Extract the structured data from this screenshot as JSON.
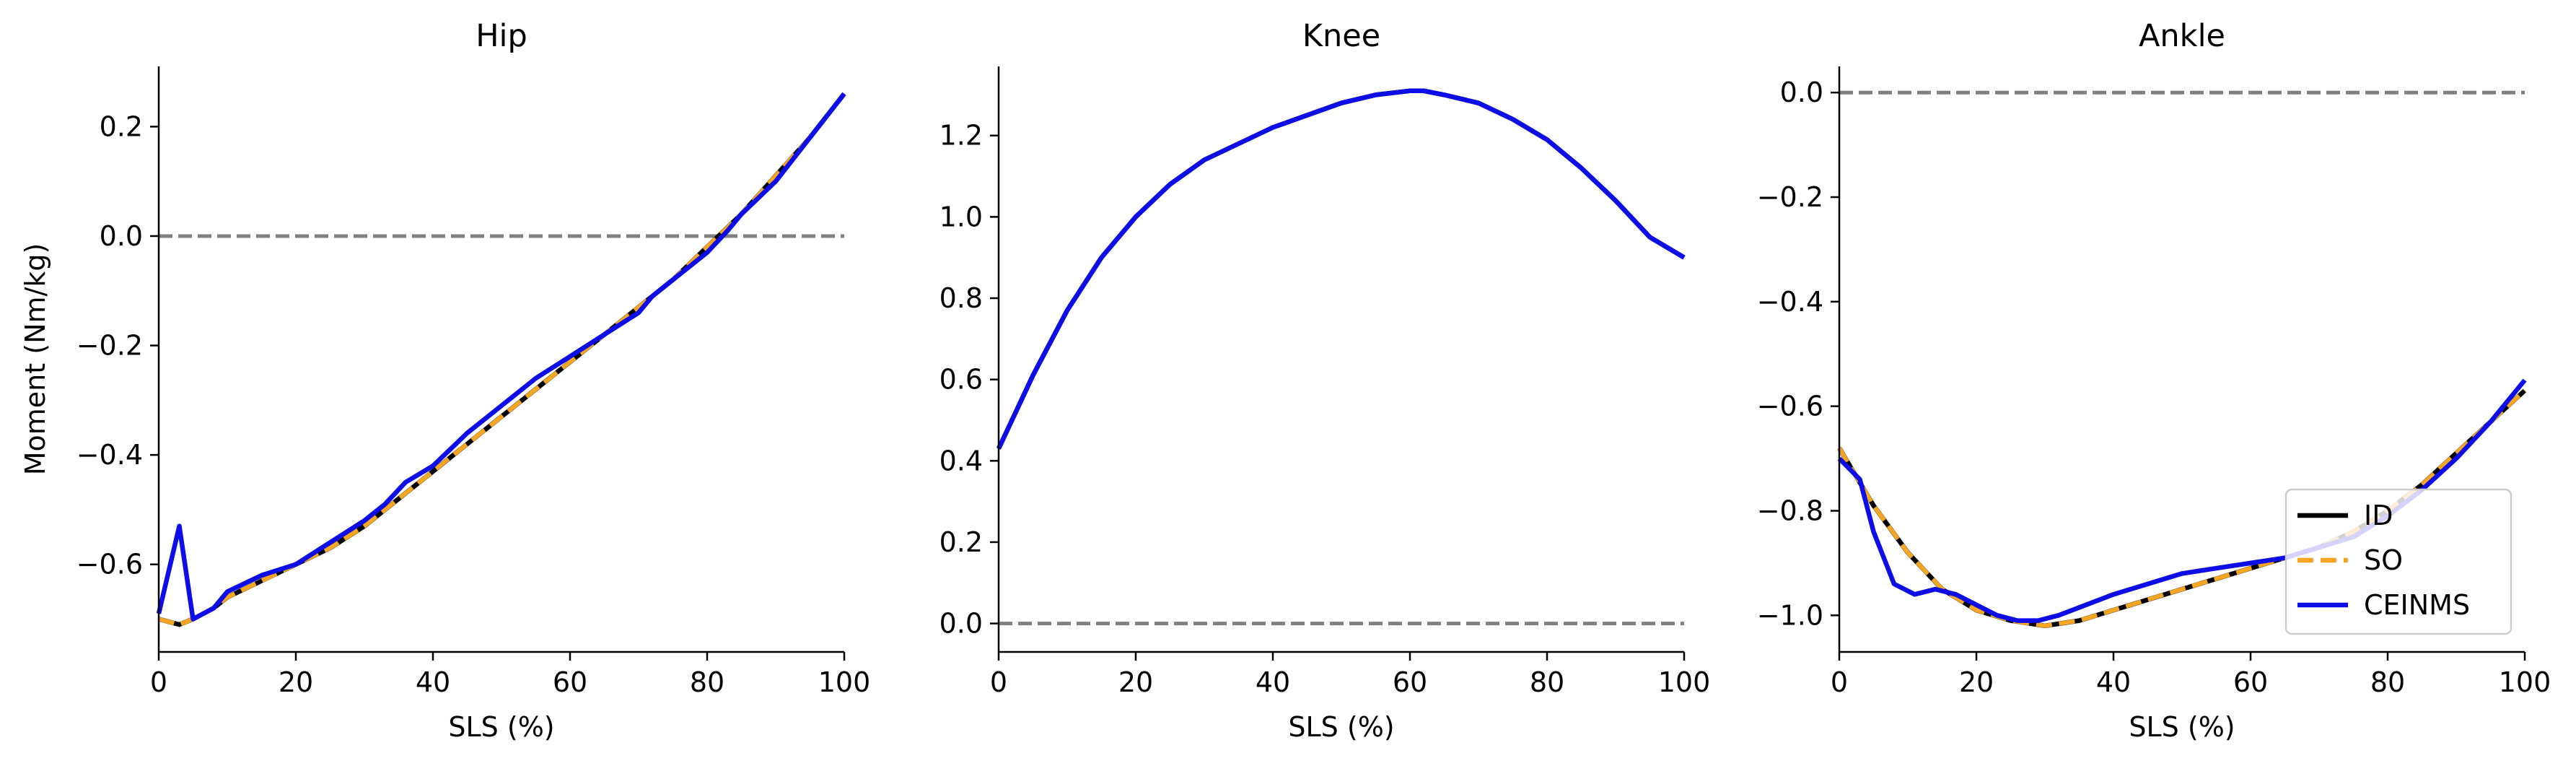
{
  "chart_data": [
    {
      "type": "line",
      "title": "Hip",
      "xlabel": "SLS (%)",
      "ylabel": "Moment (Nm/kg)",
      "xlim": [
        0,
        100
      ],
      "ylim": [
        -0.76,
        0.31
      ],
      "xticks": [
        0,
        20,
        40,
        60,
        80,
        100
      ],
      "xtick_labels": [
        "0",
        "20",
        "40",
        "60",
        "80",
        "100"
      ],
      "yticks": [
        -0.6,
        -0.4,
        -0.2,
        0.0,
        0.2
      ],
      "ytick_labels": [
        "−0.6",
        "−0.4",
        "−0.2",
        "0.0",
        "0.2"
      ],
      "zero_line": true,
      "grid": false,
      "series": [
        {
          "name": "ID",
          "color": "#000000",
          "style": "solid",
          "x": [
            0,
            3,
            5,
            8,
            10,
            15,
            20,
            25,
            30,
            35,
            40,
            45,
            50,
            55,
            60,
            65,
            70,
            75,
            80,
            85,
            90,
            95,
            100
          ],
          "y": [
            -0.7,
            -0.71,
            -0.7,
            -0.68,
            -0.66,
            -0.63,
            -0.6,
            -0.57,
            -0.53,
            -0.48,
            -0.43,
            -0.38,
            -0.33,
            -0.28,
            -0.23,
            -0.18,
            -0.13,
            -0.08,
            -0.02,
            0.04,
            0.11,
            0.18,
            0.26
          ]
        },
        {
          "name": "SO",
          "color": "#f5a623",
          "style": "dashed",
          "x": [
            0,
            3,
            5,
            8,
            10,
            15,
            20,
            25,
            30,
            35,
            40,
            45,
            50,
            55,
            60,
            65,
            70,
            75,
            80,
            85,
            90,
            95,
            100
          ],
          "y": [
            -0.7,
            -0.71,
            -0.7,
            -0.68,
            -0.66,
            -0.63,
            -0.6,
            -0.57,
            -0.53,
            -0.48,
            -0.43,
            -0.38,
            -0.33,
            -0.28,
            -0.23,
            -0.18,
            -0.13,
            -0.08,
            -0.02,
            0.04,
            0.11,
            0.18,
            0.26
          ]
        },
        {
          "name": "CEINMS",
          "color": "#0d0de8",
          "style": "solid",
          "x": [
            0,
            3,
            5,
            8,
            10,
            15,
            20,
            25,
            30,
            33,
            36,
            40,
            45,
            50,
            55,
            60,
            65,
            70,
            72,
            75,
            80,
            83,
            85,
            90,
            95,
            100
          ],
          "y": [
            -0.69,
            -0.53,
            -0.7,
            -0.68,
            -0.65,
            -0.62,
            -0.6,
            -0.56,
            -0.52,
            -0.49,
            -0.45,
            -0.42,
            -0.36,
            -0.31,
            -0.26,
            -0.22,
            -0.18,
            -0.14,
            -0.11,
            -0.08,
            -0.03,
            0.01,
            0.04,
            0.1,
            0.18,
            0.26
          ]
        }
      ]
    },
    {
      "type": "line",
      "title": "Knee",
      "xlabel": "SLS (%)",
      "ylabel": "",
      "xlim": [
        0,
        100
      ],
      "ylim": [
        -0.07,
        1.37
      ],
      "xticks": [
        0,
        20,
        40,
        60,
        80,
        100
      ],
      "xtick_labels": [
        "0",
        "20",
        "40",
        "60",
        "80",
        "100"
      ],
      "yticks": [
        0.0,
        0.2,
        0.4,
        0.6,
        0.8,
        1.0,
        1.2
      ],
      "ytick_labels": [
        "0.0",
        "0.2",
        "0.4",
        "0.6",
        "0.8",
        "1.0",
        "1.2"
      ],
      "zero_line": true,
      "grid": false,
      "series": [
        {
          "name": "ID",
          "color": "#000000",
          "style": "solid",
          "x": [
            0,
            5,
            10,
            15,
            20,
            25,
            30,
            35,
            40,
            45,
            50,
            55,
            60,
            62,
            65,
            70,
            75,
            80,
            85,
            90,
            95,
            100
          ],
          "y": [
            0.43,
            0.61,
            0.77,
            0.9,
            1.0,
            1.08,
            1.14,
            1.18,
            1.22,
            1.25,
            1.28,
            1.3,
            1.31,
            1.31,
            1.3,
            1.28,
            1.24,
            1.19,
            1.12,
            1.04,
            0.95,
            0.9
          ]
        },
        {
          "name": "SO",
          "color": "#f5a623",
          "style": "dashed",
          "x": [
            0,
            5,
            10,
            15,
            20,
            25,
            30,
            35,
            40,
            45,
            50,
            55,
            60,
            62,
            65,
            70,
            75,
            80,
            85,
            90,
            95,
            100
          ],
          "y": [
            0.43,
            0.61,
            0.77,
            0.9,
            1.0,
            1.08,
            1.14,
            1.18,
            1.22,
            1.25,
            1.28,
            1.3,
            1.31,
            1.31,
            1.3,
            1.28,
            1.24,
            1.19,
            1.12,
            1.04,
            0.95,
            0.9
          ]
        },
        {
          "name": "CEINMS",
          "color": "#0d0de8",
          "style": "solid",
          "x": [
            0,
            5,
            10,
            15,
            20,
            25,
            30,
            35,
            40,
            45,
            50,
            55,
            60,
            62,
            65,
            70,
            75,
            80,
            85,
            90,
            95,
            100
          ],
          "y": [
            0.43,
            0.61,
            0.77,
            0.9,
            1.0,
            1.08,
            1.14,
            1.18,
            1.22,
            1.25,
            1.28,
            1.3,
            1.31,
            1.31,
            1.3,
            1.28,
            1.24,
            1.19,
            1.12,
            1.04,
            0.95,
            0.9
          ]
        }
      ]
    },
    {
      "type": "line",
      "title": "Ankle",
      "xlabel": "SLS (%)",
      "ylabel": "",
      "xlim": [
        0,
        100
      ],
      "ylim": [
        -1.07,
        0.05
      ],
      "xticks": [
        0,
        20,
        40,
        60,
        80,
        100
      ],
      "xtick_labels": [
        "0",
        "20",
        "40",
        "60",
        "80",
        "100"
      ],
      "yticks": [
        -1.0,
        -0.8,
        -0.6,
        -0.4,
        -0.2,
        0.0
      ],
      "ytick_labels": [
        "−1.0",
        "−0.8",
        "−0.6",
        "−0.4",
        "−0.2",
        "0.0"
      ],
      "zero_line": true,
      "grid": false,
      "legend": {
        "placement": "lower-right",
        "entries": [
          "ID",
          "SO",
          "CEINMS"
        ]
      },
      "series": [
        {
          "name": "ID",
          "color": "#000000",
          "style": "solid",
          "x": [
            0,
            5,
            10,
            15,
            20,
            25,
            30,
            35,
            40,
            45,
            50,
            55,
            60,
            65,
            70,
            75,
            80,
            85,
            90,
            95,
            100
          ],
          "y": [
            -0.68,
            -0.79,
            -0.88,
            -0.95,
            -0.99,
            -1.01,
            -1.02,
            -1.01,
            -0.99,
            -0.97,
            -0.95,
            -0.93,
            -0.91,
            -0.89,
            -0.87,
            -0.84,
            -0.8,
            -0.75,
            -0.69,
            -0.63,
            -0.57
          ]
        },
        {
          "name": "SO",
          "color": "#f5a623",
          "style": "dashed",
          "x": [
            0,
            5,
            10,
            15,
            20,
            25,
            30,
            35,
            40,
            45,
            50,
            55,
            60,
            65,
            70,
            75,
            80,
            85,
            90,
            95,
            100
          ],
          "y": [
            -0.68,
            -0.79,
            -0.88,
            -0.95,
            -0.99,
            -1.01,
            -1.02,
            -1.01,
            -0.99,
            -0.97,
            -0.95,
            -0.93,
            -0.91,
            -0.89,
            -0.87,
            -0.84,
            -0.8,
            -0.75,
            -0.69,
            -0.63,
            -0.57
          ]
        },
        {
          "name": "CEINMS",
          "color": "#0d0de8",
          "style": "solid",
          "x": [
            0,
            3,
            5,
            8,
            11,
            14,
            17,
            20,
            23,
            26,
            29,
            32,
            36,
            40,
            45,
            50,
            55,
            60,
            65,
            70,
            75,
            80,
            85,
            90,
            95,
            100
          ],
          "y": [
            -0.7,
            -0.74,
            -0.84,
            -0.94,
            -0.96,
            -0.95,
            -0.96,
            -0.98,
            -1.0,
            -1.01,
            -1.01,
            -1.0,
            -0.98,
            -0.96,
            -0.94,
            -0.92,
            -0.91,
            -0.9,
            -0.89,
            -0.87,
            -0.85,
            -0.81,
            -0.76,
            -0.7,
            -0.63,
            -0.55
          ]
        }
      ]
    }
  ]
}
